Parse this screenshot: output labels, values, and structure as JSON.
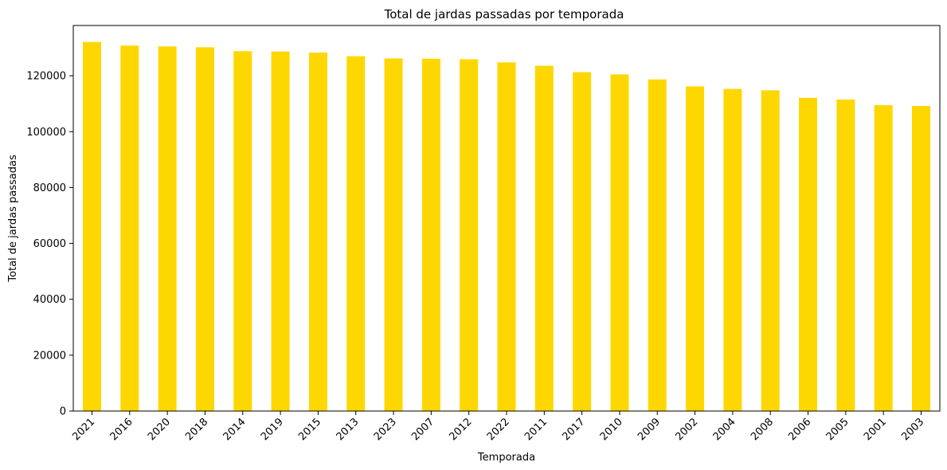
{
  "chart_data": {
    "type": "bar",
    "title": "Total de jardas passadas por temporada",
    "xlabel": "Temporada",
    "ylabel": "Total de jardas passadas",
    "categories": [
      "2021",
      "2016",
      "2020",
      "2018",
      "2014",
      "2019",
      "2015",
      "2013",
      "2023",
      "2007",
      "2012",
      "2022",
      "2011",
      "2017",
      "2010",
      "2009",
      "2002",
      "2004",
      "2008",
      "2006",
      "2005",
      "2001",
      "2003"
    ],
    "values": [
      132100,
      130800,
      130500,
      130200,
      128800,
      128700,
      128300,
      127000,
      126200,
      126100,
      125900,
      124800,
      123600,
      121300,
      120500,
      118700,
      116200,
      115300,
      114800,
      112100,
      111500,
      109500,
      109200
    ],
    "yticks": [
      0,
      20000,
      40000,
      60000,
      80000,
      100000,
      120000
    ],
    "ylim": [
      0,
      138000
    ],
    "bar_color": "#FFD700",
    "grid": false,
    "legend": false
  }
}
